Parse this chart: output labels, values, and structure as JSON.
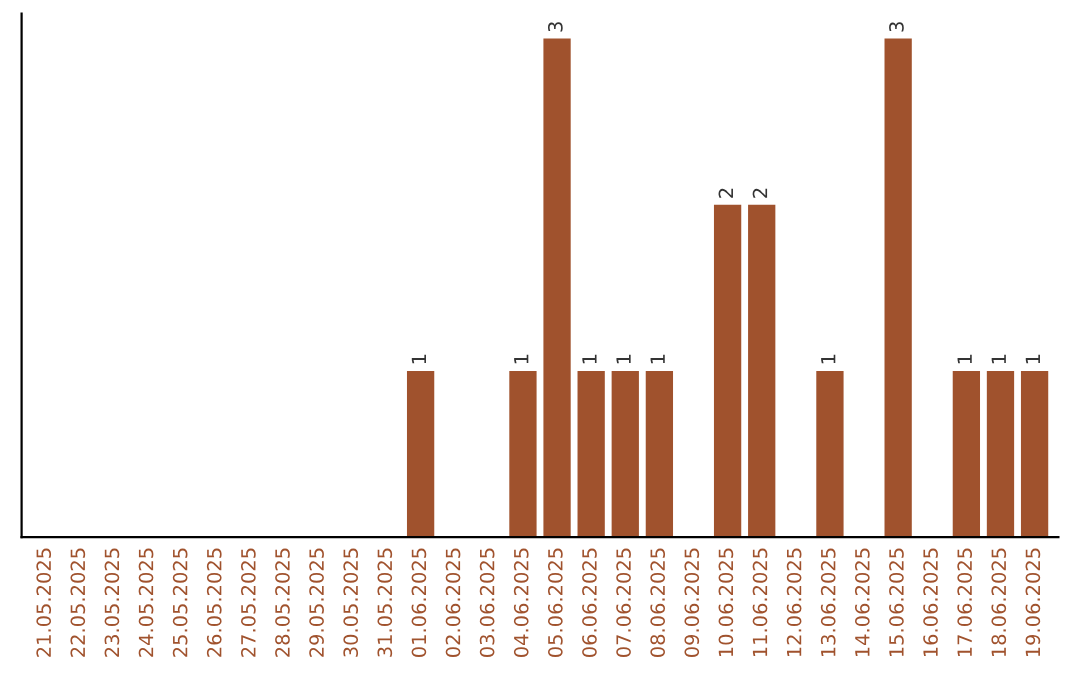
{
  "chart_data": {
    "type": "bar",
    "categories": [
      "21.05.2025",
      "22.05.2025",
      "23.05.2025",
      "24.05.2025",
      "25.05.2025",
      "26.05.2025",
      "27.05.2025",
      "28.05.2025",
      "29.05.2025",
      "30.05.2025",
      "31.05.2025",
      "01.06.2025",
      "02.06.2025",
      "03.06.2025",
      "04.06.2025",
      "05.06.2025",
      "06.06.2025",
      "07.06.2025",
      "08.06.2025",
      "09.06.2025",
      "10.06.2025",
      "11.06.2025",
      "12.06.2025",
      "13.06.2025",
      "14.06.2025",
      "15.06.2025",
      "16.06.2025",
      "17.06.2025",
      "18.06.2025",
      "19.06.2025"
    ],
    "values": [
      0,
      0,
      0,
      0,
      0,
      0,
      0,
      0,
      0,
      0,
      0,
      1,
      0,
      0,
      1,
      3,
      1,
      1,
      1,
      0,
      2,
      2,
      0,
      1,
      0,
      3,
      0,
      1,
      1,
      1
    ],
    "value_labels": [
      null,
      null,
      null,
      null,
      null,
      null,
      null,
      null,
      null,
      null,
      null,
      "1",
      null,
      null,
      "1",
      "3",
      "1",
      "1",
      "1",
      null,
      "2",
      "2",
      null,
      "1",
      null,
      "3",
      null,
      "1",
      "1",
      "1"
    ],
    "color": "#a0522d",
    "tick_labels": "x",
    "grid": false,
    "legend": false
  }
}
